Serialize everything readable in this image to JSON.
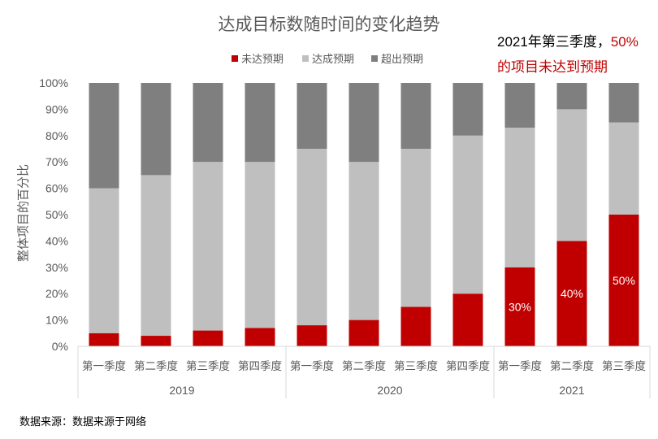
{
  "chart_data": {
    "type": "bar",
    "stacked": true,
    "title": "达成目标数随时间的变化趋势",
    "ylabel": "整体项目的百分比",
    "xlabel": "",
    "ylim": [
      0,
      100
    ],
    "y_ticks": [
      "0%",
      "10%",
      "20%",
      "30%",
      "40%",
      "50%",
      "60%",
      "70%",
      "80%",
      "90%",
      "100%"
    ],
    "grid": false,
    "legend_position": "top",
    "categories": [
      "第一季度",
      "第二季度",
      "第三季度",
      "第四季度",
      "第一季度",
      "第二季度",
      "第三季度",
      "第四季度",
      "第一季度",
      "第二季度",
      "第三季度"
    ],
    "groups": [
      {
        "label": "2019",
        "count": 4
      },
      {
        "label": "2020",
        "count": 4
      },
      {
        "label": "2021",
        "count": 3
      }
    ],
    "series": [
      {
        "name": "未达预期",
        "color": "#c00000",
        "values": [
          5,
          4,
          6,
          7,
          8,
          10,
          15,
          20,
          30,
          40,
          50
        ]
      },
      {
        "name": "达成预期",
        "color": "#bfbfbf",
        "values": [
          55,
          61,
          64,
          63,
          67,
          60,
          60,
          60,
          53,
          50,
          35
        ]
      },
      {
        "name": "超出预期",
        "color": "#7f7f7f",
        "values": [
          40,
          35,
          30,
          30,
          25,
          30,
          25,
          20,
          17,
          10,
          15
        ]
      }
    ],
    "data_labels": [
      {
        "index": 8,
        "text": "30%"
      },
      {
        "index": 9,
        "text": "40%"
      },
      {
        "index": 10,
        "text": "50%"
      }
    ]
  },
  "annotation": {
    "prefix": "2021年第三季度，",
    "highlight": "50%",
    "line2": "的项目未达到预期"
  },
  "source": "数据来源：数据来源于网络"
}
